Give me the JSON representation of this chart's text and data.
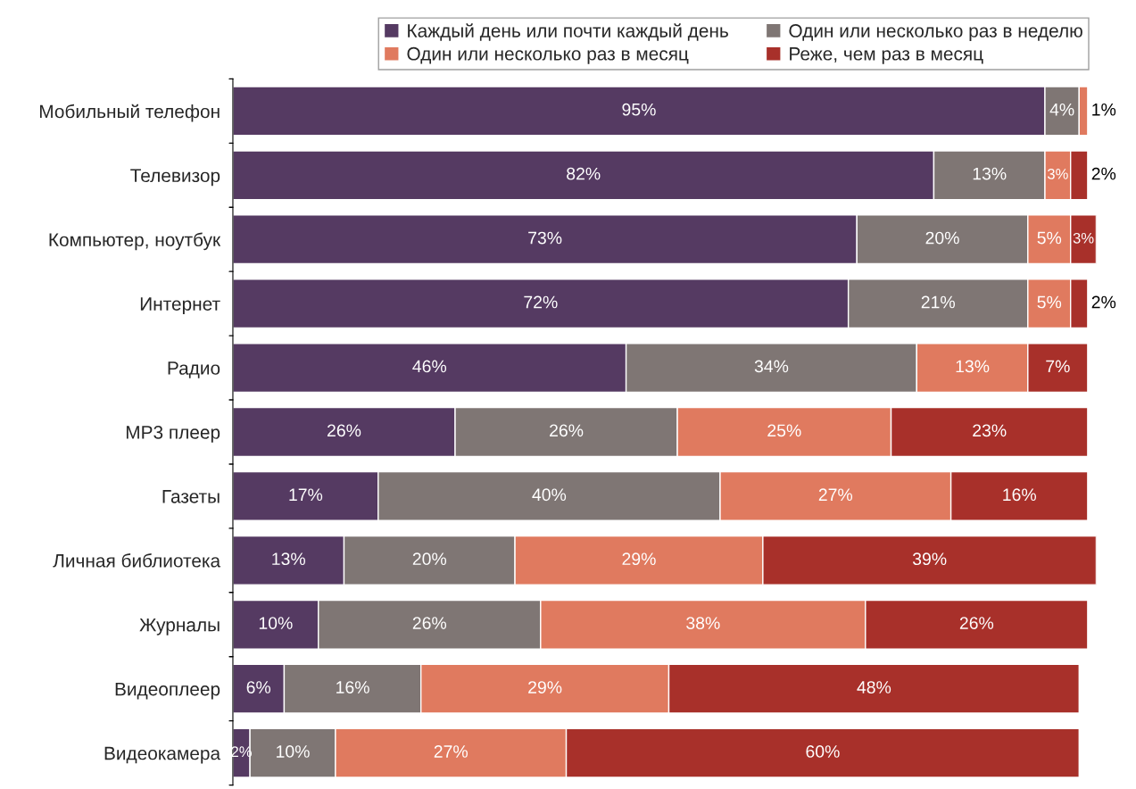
{
  "chart_data": {
    "type": "bar",
    "orientation": "horizontal",
    "stacked": true,
    "legend": "top",
    "grid": false,
    "tick_labels": "y",
    "categories": [
      "Мобильный телефон",
      "Телевизор",
      "Компьютер, ноутбук",
      "Интернет",
      "Радио",
      "MP3 плеер",
      "Газеты",
      "Личная библиотека",
      "Журналы",
      "Видеоплеер",
      "Видеокамера"
    ],
    "series": [
      {
        "name": "Каждый день или почти каждый день",
        "color": "#553a62",
        "values": [
          95,
          82,
          73,
          72,
          46,
          26,
          17,
          13,
          10,
          6,
          2
        ],
        "value_labels": [
          "95%",
          "82%",
          "73%",
          "72%",
          "46%",
          "26%",
          "17%",
          "13%",
          "10%",
          "6%",
          "2%"
        ]
      },
      {
        "name": "Один или несколько раз в неделю",
        "color": "#7f7674",
        "values": [
          4,
          13,
          20,
          21,
          34,
          26,
          40,
          20,
          26,
          16,
          10
        ],
        "value_labels": [
          "4%",
          "13%",
          "20%",
          "21%",
          "34%",
          "26%",
          "40%",
          "20%",
          "26%",
          "16%",
          "10%"
        ]
      },
      {
        "name": "Один или несколько раз в месяц",
        "color": "#e07a5f",
        "values": [
          1,
          3,
          5,
          5,
          13,
          25,
          27,
          29,
          38,
          29,
          27
        ],
        "value_labels": [
          "1%",
          "3%",
          "5%",
          "5%",
          "13%",
          "25%",
          "27%",
          "29%",
          "38%",
          "29%",
          "27%"
        ]
      },
      {
        "name": "Реже, чем раз в месяц",
        "color": "#a8302a",
        "values": [
          null,
          2,
          3,
          2,
          7,
          23,
          16,
          39,
          26,
          48,
          60
        ],
        "value_labels": [
          null,
          "2%",
          "3%",
          "2%",
          "7%",
          "23%",
          "16%",
          "39%",
          "26%",
          "48%",
          "60%"
        ]
      }
    ]
  }
}
